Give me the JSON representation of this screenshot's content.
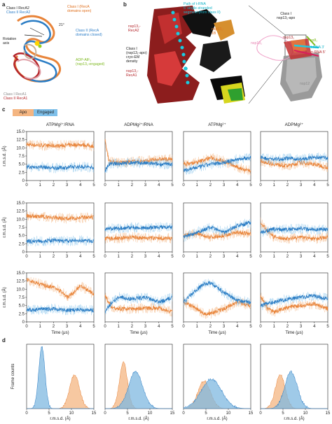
{
  "panel_a": {
    "letter": "a",
    "labels": {
      "class1_reca2": "Class I RecA2",
      "class2_reca2": "Class II RecA2",
      "class1_open": "Class I (RecA\ndomains open)",
      "class2_closed": "Class II (RecA\ndomains closed)",
      "angle": "21°",
      "rotation_axis": "Rotation\naxis",
      "adp_alf": "ADP-AlF₃\n(nsp13₁-engaged)",
      "class1_reca1": "Class I RecA1",
      "class2_reca1": "Class II RecA1"
    }
  },
  "panel_b": {
    "letter": "b",
    "labels": {
      "path": "Path of t-RNA\n5′ single-stranded\nsegment (from class II)",
      "reca2": "nsp13₁-\nRecA2",
      "ib": "nsp13₁-\n1B",
      "cryo": "Class I\n(nsp13₁-apo)\ncryo-EM\ndensity",
      "reca1": "nsp13₁-\nRecA1",
      "class1_apo": "Class I\nnsp13₁-apo",
      "nsp13_top": "nsp13₁",
      "nsp13_small": "nsp13₂",
      "nsp8": "nsp8₁",
      "t_rna": "t-RNA 3′",
      "p_rna": "p-RNA 5′",
      "nsp12": "nsp12"
    }
  },
  "panel_c": {
    "letter": "c",
    "legend": [
      {
        "label": "Apo",
        "color": "#f4a460"
      },
      {
        "label": "Engaged",
        "color": "#5fb0e8"
      }
    ],
    "column_titles": [
      "ATPMg²⁺/RNA",
      "ADPMg²⁺/RNA",
      "ATPMg²⁺",
      "ADPMg²⁺"
    ],
    "ylabel": "r.m.s.d. (Å)",
    "xlabel": "Time (μs)"
  },
  "panel_d": {
    "letter": "d",
    "ylabel": "Frame counts",
    "xlabel": "r.m.s.d. (Å)"
  },
  "chart_data": [
    {
      "type": "line",
      "panel": "c",
      "xlabel": "Time (μs)",
      "ylabel": "r.m.s.d. (Å)",
      "xlim": [
        0,
        5
      ],
      "ylim": [
        0,
        15
      ],
      "yticks": [
        0,
        2.5,
        5.0,
        7.5,
        10.0,
        12.5,
        15.0
      ],
      "xticks": [
        0,
        1,
        2,
        3,
        4,
        5
      ],
      "grid": false,
      "series_colors": {
        "apo": "#e8843a",
        "engaged": "#2a7cc4"
      },
      "rows": [
        [
          {
            "apo": [
              [
                0,
                11
              ],
              [
                1,
                10.8
              ],
              [
                2,
                10.6
              ],
              [
                3,
                10.8
              ],
              [
                4,
                11
              ],
              [
                5,
                10.5
              ]
            ],
            "engaged": [
              [
                0,
                4
              ],
              [
                1,
                4.2
              ],
              [
                2,
                3.8
              ],
              [
                3,
                4
              ],
              [
                4,
                4.3
              ],
              [
                5,
                4
              ]
            ]
          },
          {
            "apo": [
              [
                0,
                12
              ],
              [
                0.3,
                6
              ],
              [
                1,
                5.5
              ],
              [
                2,
                5.8
              ],
              [
                3,
                6
              ],
              [
                4,
                6.5
              ],
              [
                5,
                6.5
              ]
            ],
            "engaged": [
              [
                0,
                3
              ],
              [
                0.3,
                5
              ],
              [
                1,
                5.2
              ],
              [
                2,
                5.5
              ],
              [
                3,
                5.3
              ],
              [
                4,
                5
              ],
              [
                5,
                5
              ]
            ]
          },
          {
            "apo": [
              [
                0,
                5
              ],
              [
                1,
                5.5
              ],
              [
                2,
                7
              ],
              [
                3,
                6
              ],
              [
                4,
                4
              ],
              [
                5,
                3
              ]
            ],
            "engaged": [
              [
                0,
                3
              ],
              [
                1,
                4
              ],
              [
                2,
                5
              ],
              [
                3,
                5.5
              ],
              [
                4,
                6.5
              ],
              [
                5,
                7
              ]
            ]
          },
          {
            "apo": [
              [
                0,
                6
              ],
              [
                1,
                5
              ],
              [
                2,
                4.5
              ],
              [
                3,
                5.5
              ],
              [
                4,
                5
              ],
              [
                5,
                4
              ]
            ],
            "engaged": [
              [
                0,
                7
              ],
              [
                1,
                6.5
              ],
              [
                2,
                6.8
              ],
              [
                3,
                6.5
              ],
              [
                4,
                7
              ],
              [
                5,
                7
              ]
            ]
          }
        ],
        [
          {
            "apo": [
              [
                0,
                11
              ],
              [
                1,
                10.8
              ],
              [
                2,
                10.5
              ],
              [
                3,
                10.2
              ],
              [
                4,
                10.5
              ],
              [
                5,
                10.5
              ]
            ],
            "engaged": [
              [
                0,
                3.2
              ],
              [
                1,
                3.3
              ],
              [
                2,
                3.5
              ],
              [
                3,
                3.3
              ],
              [
                4,
                3.5
              ],
              [
                5,
                3.3
              ]
            ]
          },
          {
            "apo": [
              [
                0,
                4
              ],
              [
                1,
                4.2
              ],
              [
                2,
                4.5
              ],
              [
                3,
                4.3
              ],
              [
                4,
                4.2
              ],
              [
                5,
                4.2
              ]
            ],
            "engaged": [
              [
                0,
                7
              ],
              [
                1,
                7.2
              ],
              [
                2,
                7.5
              ],
              [
                3,
                7.3
              ],
              [
                4,
                7.5
              ],
              [
                5,
                7.5
              ]
            ]
          },
          {
            "apo": [
              [
                0,
                5
              ],
              [
                1,
                5.5
              ],
              [
                2,
                4.5
              ],
              [
                3,
                5
              ],
              [
                4,
                6
              ],
              [
                5,
                5.5
              ]
            ],
            "engaged": [
              [
                0,
                4.5
              ],
              [
                1,
                6
              ],
              [
                2,
                7.5
              ],
              [
                3,
                6
              ],
              [
                4,
                8
              ],
              [
                5,
                9
              ]
            ]
          },
          {
            "apo": [
              [
                0,
                9
              ],
              [
                0.5,
                6.5
              ],
              [
                1,
                4.5
              ],
              [
                2,
                4
              ],
              [
                3,
                4.5
              ],
              [
                4,
                4
              ],
              [
                5,
                4.5
              ]
            ],
            "engaged": [
              [
                0,
                6
              ],
              [
                1,
                7
              ],
              [
                2,
                6.8
              ],
              [
                3,
                7.2
              ],
              [
                4,
                6.8
              ],
              [
                5,
                7
              ]
            ]
          }
        ],
        [
          {
            "apo": [
              [
                0,
                13
              ],
              [
                1,
                11.5
              ],
              [
                2,
                10.5
              ],
              [
                2.7,
                9
              ],
              [
                3,
                7.5
              ],
              [
                3.5,
                9
              ],
              [
                4,
                11
              ],
              [
                5,
                8.5
              ]
            ],
            "engaged": [
              [
                0,
                3.5
              ],
              [
                1,
                3.8
              ],
              [
                2,
                4
              ],
              [
                3,
                3.5
              ],
              [
                4,
                3.8
              ],
              [
                5,
                3.5
              ]
            ]
          },
          {
            "apo": [
              [
                0,
                8
              ],
              [
                0.5,
                4.5
              ],
              [
                1,
                4
              ],
              [
                2,
                4
              ],
              [
                3,
                4.2
              ],
              [
                4,
                4.3
              ],
              [
                5,
                3
              ]
            ],
            "engaged": [
              [
                0,
                3
              ],
              [
                0.5,
                6
              ],
              [
                1,
                7.5
              ],
              [
                2,
                7
              ],
              [
                3,
                7.5
              ],
              [
                4,
                6
              ],
              [
                5,
                7.5
              ]
            ]
          },
          {
            "apo": [
              [
                0,
                6
              ],
              [
                1,
                4
              ],
              [
                1.5,
                2.5
              ],
              [
                2,
                2.5
              ],
              [
                3,
                4
              ],
              [
                4,
                6
              ],
              [
                5,
                5
              ]
            ],
            "engaged": [
              [
                0,
                6
              ],
              [
                1,
                10
              ],
              [
                1.5,
                11.5
              ],
              [
                2,
                12
              ],
              [
                3,
                9
              ],
              [
                4,
                6.5
              ],
              [
                5,
                6
              ]
            ]
          },
          {
            "apo": [
              [
                0,
                8
              ],
              [
                0.5,
                4
              ],
              [
                1,
                3
              ],
              [
                2,
                4.5
              ],
              [
                3,
                5
              ],
              [
                4,
                5.5
              ],
              [
                5,
                4
              ]
            ],
            "engaged": [
              [
                0,
                5
              ],
              [
                1,
                6
              ],
              [
                2,
                7
              ],
              [
                3,
                7.5
              ],
              [
                4,
                8
              ],
              [
                5,
                7
              ]
            ]
          }
        ]
      ]
    },
    {
      "type": "area",
      "panel": "d",
      "xlabel": "r.m.s.d. (Å)",
      "ylabel": "Frame counts",
      "xlim": [
        0,
        15
      ],
      "xticks": [
        0,
        5,
        10,
        15
      ],
      "histograms": [
        {
          "apo": {
            "peak": 10.7,
            "width": 1.1,
            "height": 0.55
          },
          "engaged": {
            "peak": 3.4,
            "width": 0.7,
            "height": 1.0
          }
        },
        {
          "apo": {
            "peak": 4.1,
            "width": 0.9,
            "height": 0.75
          },
          "engaged": {
            "peak": 6.8,
            "width": 1.6,
            "height": 0.6
          }
        },
        {
          "apo": {
            "peak": 4.6,
            "width": 1.4,
            "height": 0.45
          },
          "engaged": {
            "peak": 6.2,
            "width": 2.3,
            "height": 0.48
          }
        },
        {
          "apo": {
            "peak": 4.4,
            "width": 1.1,
            "height": 0.55
          },
          "engaged": {
            "peak": 6.8,
            "width": 1.4,
            "height": 0.6
          }
        }
      ]
    }
  ]
}
